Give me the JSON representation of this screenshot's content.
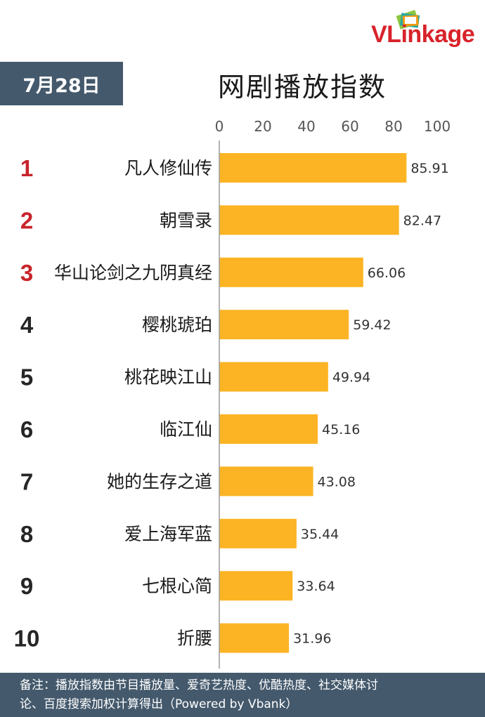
{
  "brand": {
    "logo_text": "VLinkage",
    "logo_color": "#d8232a"
  },
  "header": {
    "date": "7月28日",
    "title": "网剧播放指数"
  },
  "chart_data": {
    "type": "bar",
    "orientation": "horizontal",
    "title": "网剧播放指数",
    "ranks": [
      "1",
      "2",
      "3",
      "4",
      "5",
      "6",
      "7",
      "8",
      "9",
      "10"
    ],
    "categories": [
      "凡人修仙传",
      "朝雪录",
      "华山论剑之九阴真经",
      "樱桃琥珀",
      "桃花映江山",
      "临江仙",
      "她的生存之道",
      "爱上海军蓝",
      "七根心简",
      "折腰"
    ],
    "values": [
      85.91,
      82.47,
      66.06,
      59.42,
      49.94,
      45.16,
      43.08,
      35.44,
      33.64,
      31.96
    ],
    "value_labels": [
      "85.91",
      "82.47",
      "66.06",
      "59.42",
      "49.94",
      "45.16",
      "43.08",
      "35.44",
      "33.64",
      "31.96"
    ],
    "xlim": [
      0,
      100
    ],
    "xticks": [
      "0",
      "20",
      "40",
      "60",
      "80",
      "100"
    ],
    "tick_values": [
      0,
      20,
      40,
      60,
      80,
      100
    ],
    "axis_position": "top",
    "grid": false,
    "bar_color": "#fcb424",
    "top_rank_color": "#c8242b",
    "rank_color": "#262626"
  },
  "footer": {
    "line1": "备注：播放指数由节目播放量、爱奇艺热度、优酷热度、社交媒体讨",
    "line2": "论、百度搜索加权计算得出（Powered by Vbank）"
  }
}
